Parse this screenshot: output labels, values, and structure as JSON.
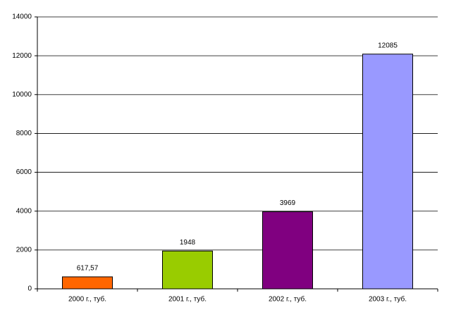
{
  "chart_data": {
    "type": "bar",
    "categories": [
      "2000 г., туб.",
      "2001 г., туб.",
      "2002 г., туб.",
      "2003 г., туб."
    ],
    "values": [
      617.57,
      1948,
      3969,
      12085
    ],
    "value_labels": [
      "617,57",
      "1948",
      "3969",
      "12085"
    ],
    "colors": [
      "#ff6600",
      "#99cc00",
      "#800080",
      "#9999ff"
    ],
    "ylim": [
      0,
      14000
    ],
    "yticks": [
      0,
      2000,
      4000,
      6000,
      8000,
      10000,
      12000,
      14000
    ],
    "grid": true
  }
}
